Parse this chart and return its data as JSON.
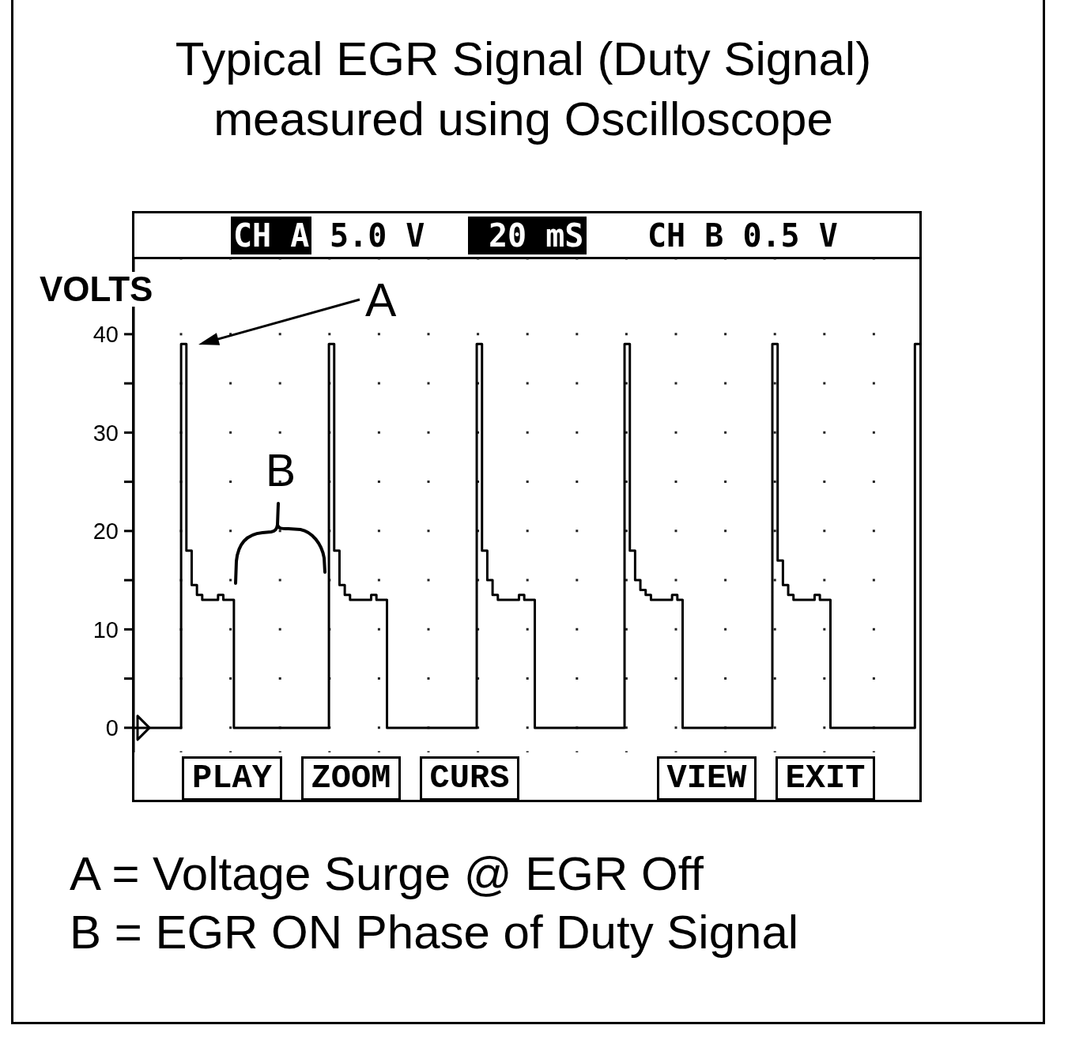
{
  "chart_data": {
    "type": "step",
    "title": "Typical EGR Signal (Duty Signal)",
    "subtitle": "measured using Oscilloscope",
    "ylabel": "VOLTS",
    "categories": [
      null,
      null,
      null,
      null,
      null,
      null,
      null,
      null,
      null,
      null,
      null,
      null,
      null,
      null,
      null,
      null,
      null,
      null,
      null,
      null,
      null,
      null,
      null,
      null,
      null,
      null,
      null,
      null,
      null,
      null,
      null,
      null,
      null,
      null,
      null,
      null,
      null,
      null,
      null,
      null,
      null,
      null,
      null,
      null,
      null,
      null,
      null,
      null,
      null,
      null,
      null,
      null,
      null,
      null,
      null,
      null,
      null,
      null,
      null,
      null,
      null,
      null,
      null,
      null,
      null,
      null,
      null,
      null,
      null,
      null,
      null,
      null,
      null,
      null,
      null,
      null,
      null,
      null,
      null,
      null,
      null,
      null,
      null,
      null,
      null,
      null,
      null,
      null,
      null,
      null,
      null,
      null,
      null,
      null,
      null,
      null,
      null,
      null,
      null,
      null,
      null,
      null,
      null,
      null,
      null,
      null,
      null,
      null,
      null,
      null,
      null,
      null,
      null,
      null,
      null,
      null,
      null,
      null,
      null,
      null,
      null,
      null,
      null,
      null,
      null,
      null,
      null,
      null,
      null,
      null,
      null,
      null,
      null,
      null,
      null,
      null,
      null,
      null,
      null,
      null,
      null,
      null,
      null,
      null,
      null,
      null,
      null,
      null,
      null,
      null
    ],
    "values": [
      0,
      0,
      0,
      0,
      0,
      0,
      0,
      0,
      0,
      39,
      18,
      14.5,
      13.5,
      13,
      13,
      13,
      13.5,
      13,
      13,
      0,
      0,
      0,
      0,
      0,
      0,
      0,
      0,
      0,
      0,
      0,
      0,
      0,
      0,
      0,
      0,
      0,
      0,
      39,
      18,
      14.5,
      13.5,
      13,
      13,
      13,
      13,
      13.5,
      13,
      13,
      0,
      0,
      0,
      0,
      0,
      0,
      0,
      0,
      0,
      0,
      0,
      0,
      0,
      0,
      0,
      0,
      0,
      39,
      18,
      15,
      13.5,
      13,
      13,
      13,
      13,
      13.5,
      13,
      13,
      0,
      0,
      0,
      0,
      0,
      0,
      0,
      0,
      0,
      0,
      0,
      0,
      0,
      0,
      0,
      0,
      0,
      39,
      18,
      15,
      14,
      13.5,
      13,
      13,
      13,
      13,
      13.5,
      13,
      0,
      0,
      0,
      0,
      0,
      0,
      0,
      0,
      0,
      0,
      0,
      0,
      0,
      0,
      0,
      0,
      0,
      39,
      17,
      14.5,
      13.5,
      13,
      13,
      13,
      13,
      13.5,
      13,
      13,
      0,
      0,
      0,
      0,
      0,
      0,
      0,
      0,
      0,
      0,
      0,
      0,
      0,
      0,
      0,
      0,
      39,
      39
    ],
    "color": "#000000",
    "ylim": [
      -2.5,
      47.7
    ],
    "yticks": [
      0,
      {
        "value": 5,
        "label": null
      },
      10,
      {
        "value": 15,
        "label": null
      },
      20,
      {
        "value": 25,
        "label": null
      },
      30,
      {
        "value": 35,
        "label": null
      },
      40
    ],
    "grid": true,
    "tick_labels": "y",
    "marker": "none",
    "line_style": "solid",
    "annotations": [
      "CH A",
      "5.0 V",
      "20 mS",
      "CH B 0.5 V",
      "A",
      "B",
      "PLAY",
      "ZOOM",
      "CURS",
      "VIEW",
      "EXIT",
      "A = Voltage Surge @ EGR Off",
      "B = EGR ON Phase of Duty Signal"
    ]
  }
}
